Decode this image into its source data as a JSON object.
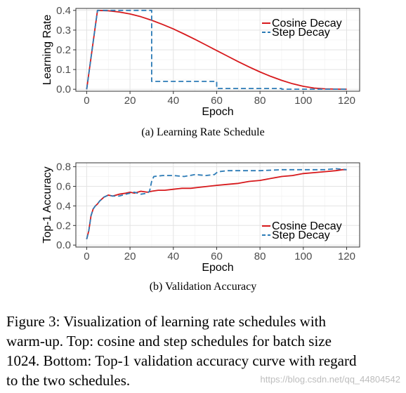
{
  "chart_data": [
    {
      "type": "line",
      "xlabel": "Epoch",
      "ylabel": "Learning Rate",
      "xlim": [
        -5,
        126
      ],
      "ylim": [
        -0.01,
        0.41
      ],
      "xticks": [
        "0",
        "20",
        "40",
        "60",
        "80",
        "100",
        "120"
      ],
      "yticks": [
        "0.0",
        "0.1",
        "0.2",
        "0.3",
        "0.4"
      ],
      "grid": true,
      "legend": "top-right",
      "caption": "(a) Learning Rate Schedule",
      "series": [
        {
          "name": "Cosine Decay",
          "color": "#d7191c",
          "style": "solid",
          "x": [
            0,
            5,
            10,
            15,
            20,
            25,
            30,
            35,
            40,
            45,
            50,
            55,
            60,
            65,
            70,
            75,
            80,
            85,
            90,
            95,
            100,
            105,
            110,
            115,
            120
          ],
          "y": [
            0.0,
            0.4,
            0.398,
            0.392,
            0.382,
            0.368,
            0.35,
            0.329,
            0.306,
            0.28,
            0.253,
            0.225,
            0.196,
            0.168,
            0.14,
            0.113,
            0.088,
            0.065,
            0.045,
            0.028,
            0.015,
            0.006,
            0.002,
            0.0005,
            0.0
          ]
        },
        {
          "name": "Step Decay",
          "color": "#2c7bb6",
          "style": "dashed",
          "x": [
            0,
            5,
            30,
            30,
            60,
            60,
            90,
            90,
            120
          ],
          "y": [
            0.0,
            0.4,
            0.4,
            0.04,
            0.04,
            0.004,
            0.004,
            0.0004,
            0.0004
          ]
        }
      ]
    },
    {
      "type": "line",
      "xlabel": "Epoch",
      "ylabel": "Top-1 Accuracy",
      "xlim": [
        -5,
        126
      ],
      "ylim": [
        -0.02,
        0.84
      ],
      "xticks": [
        "0",
        "20",
        "40",
        "60",
        "80",
        "100",
        "120"
      ],
      "yticks": [
        "0.0",
        "0.2",
        "0.4",
        "0.6",
        "0.8"
      ],
      "grid": true,
      "legend": "bottom-right",
      "caption": "(b) Validation Accuracy",
      "series": [
        {
          "name": "Cosine Decay",
          "color": "#d7191c",
          "style": "solid",
          "x": [
            0,
            1,
            2,
            3,
            4,
            5,
            6,
            8,
            10,
            12,
            15,
            18,
            20,
            22,
            25,
            28,
            30,
            33,
            36,
            40,
            44,
            48,
            52,
            56,
            60,
            65,
            70,
            75,
            80,
            85,
            90,
            95,
            100,
            105,
            110,
            115,
            118,
            120
          ],
          "y": [
            0.06,
            0.15,
            0.3,
            0.37,
            0.4,
            0.42,
            0.45,
            0.49,
            0.51,
            0.5,
            0.52,
            0.53,
            0.54,
            0.53,
            0.55,
            0.54,
            0.55,
            0.56,
            0.56,
            0.57,
            0.58,
            0.58,
            0.59,
            0.6,
            0.61,
            0.62,
            0.63,
            0.65,
            0.66,
            0.68,
            0.7,
            0.71,
            0.73,
            0.74,
            0.75,
            0.76,
            0.77,
            0.77
          ]
        },
        {
          "name": "Step Decay",
          "color": "#2c7bb6",
          "style": "dashed",
          "x": [
            0,
            1,
            2,
            3,
            4,
            5,
            6,
            8,
            10,
            12,
            15,
            18,
            20,
            22,
            25,
            28,
            29,
            30,
            31,
            35,
            40,
            45,
            50,
            55,
            59,
            60,
            61,
            65,
            70,
            80,
            90,
            100,
            110,
            115,
            120
          ],
          "y": [
            0.06,
            0.15,
            0.3,
            0.37,
            0.4,
            0.42,
            0.45,
            0.49,
            0.51,
            0.5,
            0.5,
            0.52,
            0.53,
            0.54,
            0.52,
            0.53,
            0.55,
            0.65,
            0.7,
            0.71,
            0.71,
            0.7,
            0.72,
            0.71,
            0.72,
            0.74,
            0.75,
            0.76,
            0.76,
            0.76,
            0.77,
            0.77,
            0.77,
            0.78,
            0.77
          ]
        }
      ]
    }
  ],
  "figure_caption": {
    "lines": [
      "Figure 3: Visualization of learning rate schedules with",
      "warm-up. Top: cosine and step schedules for batch size",
      "1024. Bottom: Top-1 validation accuracy curve with regard",
      "to the two schedules."
    ]
  },
  "watermark": "https://blog.csdn.net/qq_44804542"
}
